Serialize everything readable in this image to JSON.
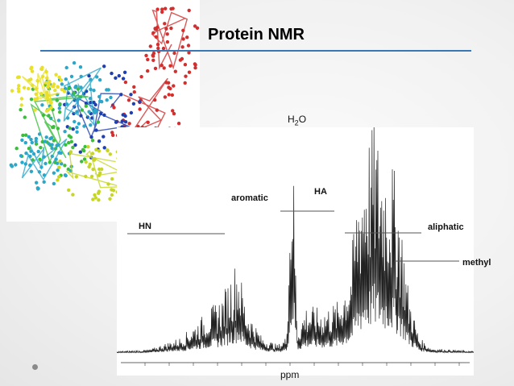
{
  "slide": {
    "title": "Protein NMR",
    "accent_color": "#3a78b5"
  },
  "protein_image": {
    "icon": "protein-ribbon-structure",
    "colors": [
      "#d32f2f",
      "#2040b0",
      "#2aa7c9",
      "#3bbf3b",
      "#c7d626",
      "#e8e02a"
    ]
  },
  "spectrum": {
    "labels": {
      "h2o_main": "H",
      "h2o_sub": "2",
      "h2o_tail": "O",
      "ppm": "ppm",
      "aromatic": "aromatic",
      "ha": "HA",
      "hn": "HN",
      "aliphatic": "aliphatic",
      "methyl": "methyl"
    },
    "line_color": "#222222"
  }
}
